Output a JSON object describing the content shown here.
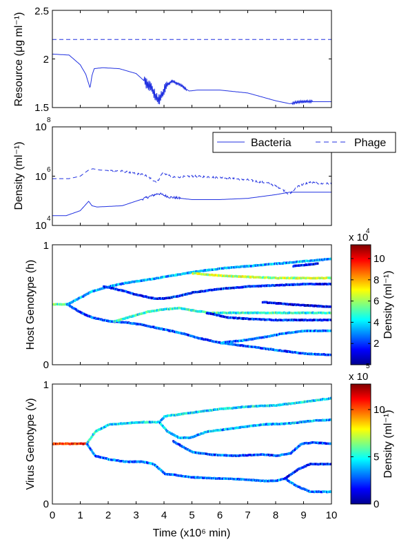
{
  "colors": {
    "line": "#1f2fe0",
    "axis": "#000000",
    "colormap": [
      "#00008f",
      "#0000ff",
      "#007fff",
      "#00ffff",
      "#7fff7f",
      "#ffff00",
      "#ff7f00",
      "#ff0000",
      "#7f0000"
    ]
  },
  "chart_data": [
    {
      "type": "line",
      "ylabel": "Resource (μg ml⁻¹)",
      "xlim": [
        0,
        10
      ],
      "ylim": [
        1.5,
        2.5
      ],
      "yticks": [
        "1.5",
        "2",
        "2.5"
      ],
      "series": [
        {
          "name": "",
          "style": "solid",
          "x": [
            0,
            0.6,
            1.0,
            1.2,
            1.35,
            1.42,
            1.5,
            1.8,
            2.4,
            3.0,
            3.5,
            3.8,
            3.95,
            4.1,
            4.3,
            4.6,
            4.9,
            5.2,
            6.0,
            7.0,
            7.5,
            8.0,
            8.5,
            8.9,
            9.3,
            10.0
          ],
          "y": [
            2.05,
            2.04,
            1.94,
            1.84,
            1.7,
            1.83,
            1.9,
            1.91,
            1.9,
            1.85,
            1.72,
            1.57,
            1.64,
            1.73,
            1.77,
            1.73,
            1.67,
            1.68,
            1.68,
            1.65,
            1.61,
            1.57,
            1.54,
            1.56,
            1.56,
            1.56
          ],
          "noise": [
            [
              3.3,
              4.1,
              0.06
            ],
            [
              4.1,
              4.8,
              0.02
            ],
            [
              8.6,
              9.3,
              0.015
            ]
          ]
        },
        {
          "name": "",
          "style": "dashed",
          "x": [
            0,
            10
          ],
          "y": [
            2.2,
            2.2
          ]
        }
      ]
    },
    {
      "type": "line",
      "ylabel": "Density (ml⁻¹)",
      "xlim": [
        0,
        10
      ],
      "ylim_log10": [
        4,
        8
      ],
      "ytick_bases": [
        "10",
        "10",
        "10"
      ],
      "ytick_exponents": [
        "4",
        "6",
        "8"
      ],
      "legend": {
        "position": "top-right"
      },
      "series": [
        {
          "name": "Bacteria",
          "style": "solid",
          "x_log": [
            0,
            0.5,
            1.0,
            1.3,
            1.42,
            1.6,
            2.5,
            3.3,
            3.8,
            4.2,
            5.0,
            6.0,
            7.0,
            8.0,
            8.5,
            9.0,
            10.0
          ],
          "log10": [
            4.4,
            4.4,
            4.6,
            4.98,
            4.8,
            4.75,
            4.8,
            5.1,
            5.3,
            5.15,
            5.05,
            5.05,
            5.1,
            5.25,
            5.35,
            5.35,
            5.35
          ],
          "noise": [
            [
              3.2,
              4.6,
              0.05
            ]
          ]
        },
        {
          "name": "Phage",
          "style": "dashed",
          "x_log": [
            0,
            0.6,
            1.0,
            1.3,
            1.45,
            1.7,
            2.5,
            3.3,
            3.75,
            3.95,
            4.3,
            5.0,
            6.0,
            7.0,
            7.8,
            8.2,
            8.5,
            8.8,
            9.2,
            9.6,
            10.0
          ],
          "log10": [
            5.9,
            5.9,
            6.0,
            6.25,
            6.3,
            6.25,
            6.2,
            6.05,
            5.75,
            6.15,
            5.95,
            6.0,
            5.95,
            5.85,
            5.7,
            5.5,
            5.25,
            5.6,
            5.75,
            5.7,
            5.7
          ],
          "noise": [
            [
              2.0,
              10.0,
              0.04
            ]
          ]
        }
      ]
    },
    {
      "type": "heatmap",
      "ylabel": "Host Genotype (h)",
      "xlim": [
        0,
        10
      ],
      "ylim": [
        0,
        1
      ],
      "yticks": [
        "0",
        "1"
      ],
      "colorbar": {
        "label": "Density (ml⁻¹)",
        "ticks": [
          "2",
          "4",
          "6",
          "8",
          "10"
        ],
        "multiplier_text": "x 10",
        "multiplier_exp": "4",
        "extra_label": "5"
      },
      "branches": [
        {
          "x": [
            0,
            0.5
          ],
          "y": [
            0.5,
            0.5
          ],
          "level": 0.45
        },
        {
          "x": [
            0.5,
            1.0,
            1.4,
            2.0,
            2.6,
            3.2,
            4.0,
            5.0,
            6.0,
            7.0,
            8.0,
            9.0,
            10.0
          ],
          "y": [
            0.5,
            0.56,
            0.61,
            0.65,
            0.68,
            0.7,
            0.73,
            0.77,
            0.8,
            0.82,
            0.84,
            0.86,
            0.88
          ],
          "level": 0.3
        },
        {
          "x": [
            1.8,
            2.4,
            3.0,
            3.6,
            4.0,
            4.5,
            5.0,
            6.0,
            7.0,
            8.0,
            9.0,
            10.0
          ],
          "y": [
            0.65,
            0.62,
            0.58,
            0.55,
            0.55,
            0.57,
            0.6,
            0.63,
            0.65,
            0.66,
            0.67,
            0.67
          ],
          "level": 0.15
        },
        {
          "x": [
            5.0,
            6.0,
            7.0,
            8.0,
            9.0,
            10.0
          ],
          "y": [
            0.76,
            0.74,
            0.73,
            0.72,
            0.72,
            0.72
          ],
          "level": 0.55
        },
        {
          "x": [
            0.5,
            1.0,
            1.4,
            2.0,
            2.6,
            3.2,
            4.0,
            4.6,
            5.2,
            6.0,
            7.0,
            8.0,
            9.0,
            10.0
          ],
          "y": [
            0.5,
            0.43,
            0.39,
            0.36,
            0.35,
            0.33,
            0.29,
            0.26,
            0.22,
            0.18,
            0.15,
            0.12,
            0.09,
            0.08
          ],
          "level": 0.2
        },
        {
          "x": [
            2.2,
            2.8,
            3.4,
            4.0,
            4.5,
            5.0,
            5.6,
            6.3,
            7.0,
            8.0,
            9.0,
            10.0
          ],
          "y": [
            0.36,
            0.4,
            0.44,
            0.46,
            0.47,
            0.45,
            0.43,
            0.43,
            0.43,
            0.43,
            0.43,
            0.43
          ],
          "level": 0.4
        },
        {
          "x": [
            5.5,
            6.3,
            7.0,
            8.0,
            9.0,
            10.0
          ],
          "y": [
            0.43,
            0.39,
            0.38,
            0.37,
            0.37,
            0.37
          ],
          "level": 0.15
        },
        {
          "x": [
            6.0,
            6.8,
            7.6,
            8.3,
            9.0,
            10.0
          ],
          "y": [
            0.18,
            0.2,
            0.23,
            0.26,
            0.28,
            0.28
          ],
          "level": 0.25
        },
        {
          "x": [
            7.5,
            8.5,
            9.2,
            10.0
          ],
          "y": [
            0.52,
            0.5,
            0.49,
            0.48
          ],
          "level": 0.1
        },
        {
          "x": [
            8.6,
            9.0,
            9.5
          ],
          "y": [
            0.82,
            0.83,
            0.84
          ],
          "level": 0.1
        }
      ]
    },
    {
      "type": "heatmap",
      "ylabel": "Virus Genotype (v)",
      "xlabel": "Time (x10⁶ min)",
      "xlim": [
        0,
        10
      ],
      "ylim": [
        0,
        1
      ],
      "xticks": [
        "0",
        "1",
        "2",
        "3",
        "4",
        "5",
        "6",
        "7",
        "8",
        "9",
        "10"
      ],
      "yticks": [
        "0",
        "1"
      ],
      "colorbar": {
        "label": "Density (ml⁻¹)",
        "ticks": [
          "0",
          "5",
          "10"
        ],
        "multiplier_text": "x 10",
        "multiplier_exp": ""
      },
      "branches": [
        {
          "x": [
            0,
            0.5,
            1.0,
            1.2
          ],
          "y": [
            0.5,
            0.5,
            0.5,
            0.5
          ],
          "level": 0.85
        },
        {
          "x": [
            1.2,
            1.5,
            2.0,
            2.6,
            3.2,
            3.8,
            4.0,
            5.0,
            6.0,
            7.0,
            8.0,
            9.0,
            10.0
          ],
          "y": [
            0.5,
            0.6,
            0.66,
            0.67,
            0.68,
            0.68,
            0.73,
            0.76,
            0.79,
            0.81,
            0.82,
            0.85,
            0.88
          ],
          "level": 0.35
        },
        {
          "x": [
            3.8,
            4.1,
            4.5,
            4.9,
            5.5,
            6.5,
            7.5,
            8.5,
            9.2,
            10.0
          ],
          "y": [
            0.68,
            0.6,
            0.55,
            0.55,
            0.6,
            0.63,
            0.66,
            0.67,
            0.69,
            0.7
          ],
          "level": 0.3
        },
        {
          "x": [
            4.3,
            4.6,
            5.0,
            5.6,
            6.5,
            7.5,
            8.0,
            8.5,
            8.9,
            9.3,
            10.0
          ],
          "y": [
            0.52,
            0.48,
            0.43,
            0.41,
            0.4,
            0.41,
            0.4,
            0.42,
            0.5,
            0.51,
            0.5
          ],
          "level": 0.2
        },
        {
          "x": [
            1.2,
            1.5,
            2.0,
            2.6,
            3.2,
            3.6,
            4.0,
            5.0,
            6.0,
            7.0,
            7.5,
            8.0,
            8.3,
            8.7,
            9.2,
            10.0
          ],
          "y": [
            0.5,
            0.4,
            0.37,
            0.35,
            0.35,
            0.33,
            0.25,
            0.22,
            0.21,
            0.2,
            0.19,
            0.19,
            0.21,
            0.15,
            0.1,
            0.1
          ],
          "level": 0.25
        },
        {
          "x": [
            8.3,
            8.8,
            9.2,
            10.0
          ],
          "y": [
            0.21,
            0.29,
            0.33,
            0.33
          ],
          "level": 0.15
        }
      ]
    }
  ]
}
